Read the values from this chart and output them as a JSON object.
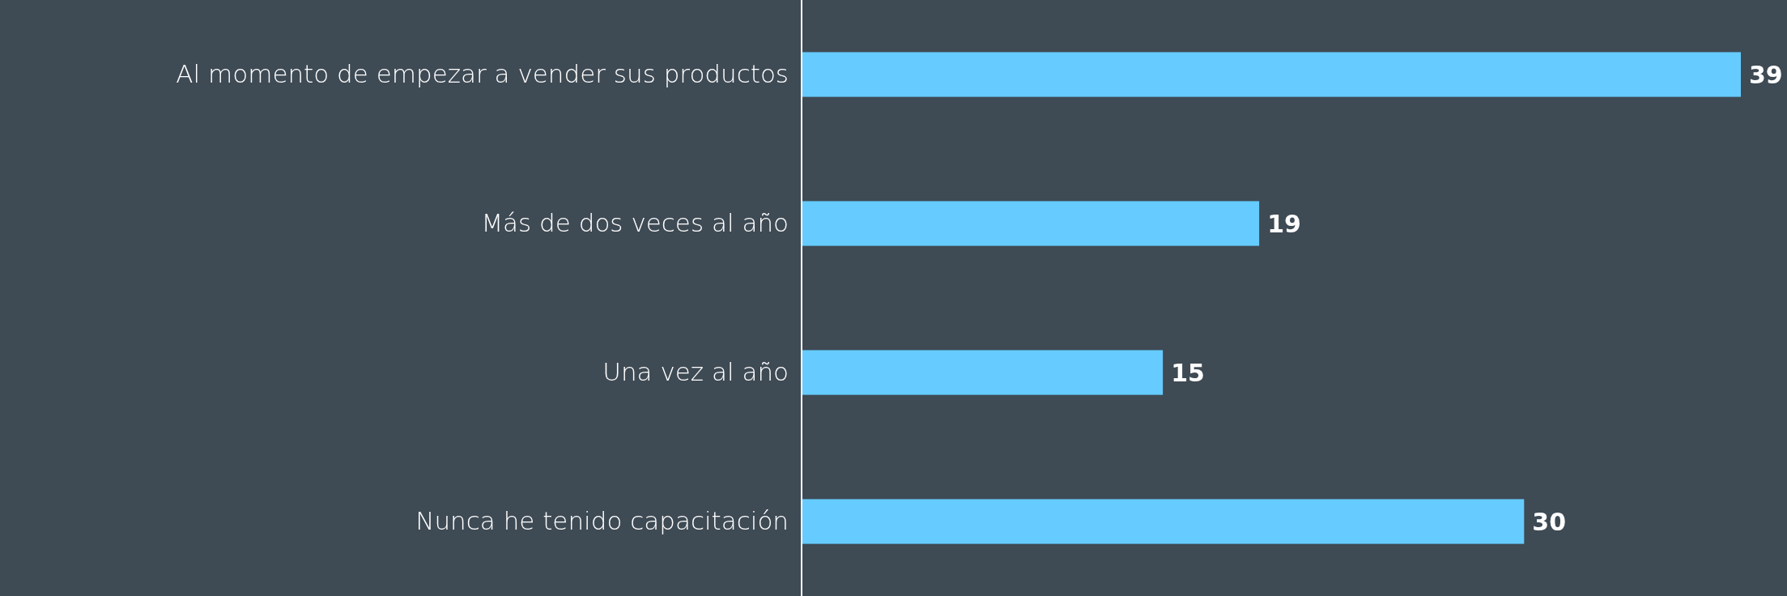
{
  "chart_data": {
    "type": "bar",
    "orientation": "horizontal",
    "categories": [
      "Al momento de empezar a vender sus productos",
      "Más de dos veces al año",
      "Una vez al año",
      "Nunca he tenido capacitación"
    ],
    "values": [
      39,
      19,
      15,
      30
    ],
    "color": "#66ccff",
    "data_labels": true
  }
}
